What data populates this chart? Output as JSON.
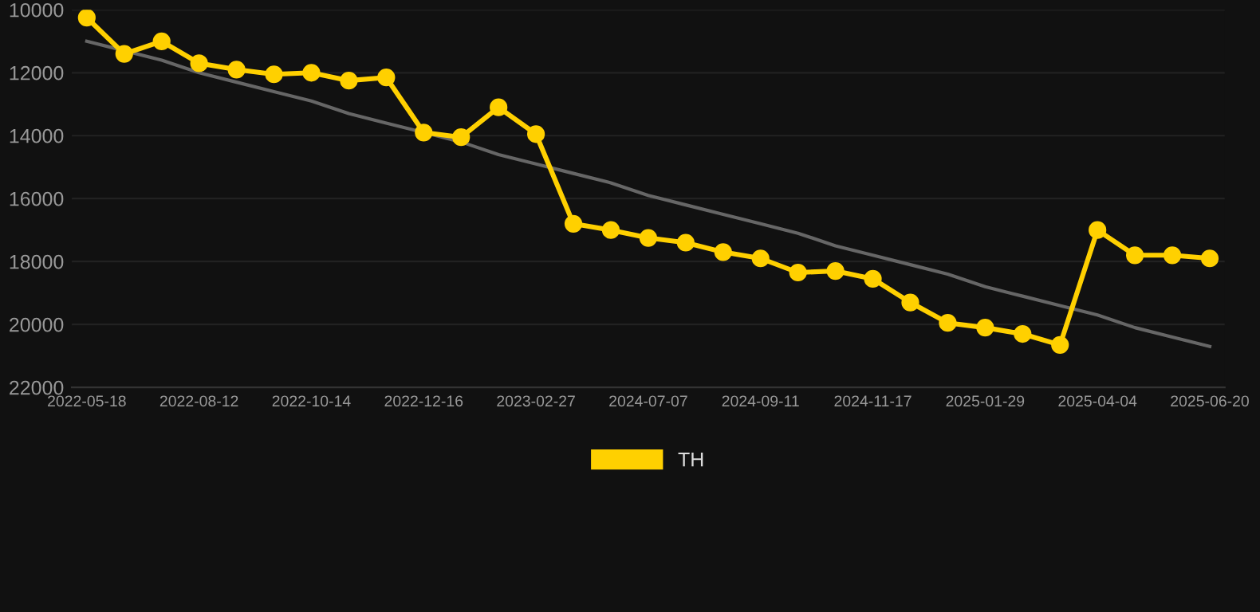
{
  "chart_data": {
    "type": "line",
    "categories": [
      "2022-05-18",
      null,
      null,
      "2022-08-12",
      null,
      null,
      "2022-10-14",
      null,
      null,
      "2022-12-16",
      null,
      null,
      "2023-02-27",
      null,
      null,
      "2024-07-07",
      null,
      null,
      "2024-09-11",
      null,
      null,
      "2024-11-17",
      null,
      null,
      "2025-01-29",
      null,
      null,
      "2025-04-04",
      null,
      null,
      "2025-06-20"
    ],
    "series": [
      {
        "name": "TH",
        "color": "#ffd000",
        "marker": "circle",
        "values": [
          10250,
          11400,
          11000,
          11700,
          11900,
          12050,
          12000,
          12250,
          12150,
          13900,
          14050,
          13100,
          13950,
          16800,
          17000,
          17250,
          17400,
          17700,
          17900,
          18350,
          18300,
          18550,
          19300,
          19950,
          20100,
          20300,
          20650,
          17000,
          17800,
          17800,
          17900
        ]
      },
      {
        "type": "line",
        "color": "#666666",
        "marker": "none",
        "values": [
          11000,
          11300,
          11600,
          12000,
          12300,
          12600,
          12900,
          13300,
          13600,
          13900,
          14200,
          14600,
          14900,
          15200,
          15500,
          15900,
          16200,
          16500,
          16800,
          17100,
          17500,
          17800,
          18100,
          18400,
          18800,
          19100,
          19400,
          19700,
          20100,
          20400,
          20700
        ]
      }
    ],
    "ylim": [
      22000,
      10000
    ],
    "yticks": [
      10000,
      12000,
      14000,
      16000,
      18000,
      20000,
      22000
    ],
    "grid": "y",
    "legend": "bottom"
  }
}
